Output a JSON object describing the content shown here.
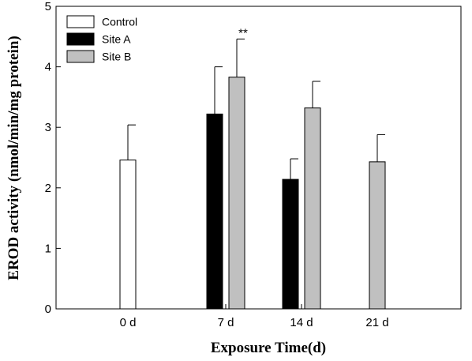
{
  "chart_data": {
    "type": "bar",
    "xlabel": "Exposure Time(d)",
    "ylabel": "EROD activity (nmol/min/mg protein)",
    "ylim": [
      0,
      5
    ],
    "yticks": [
      "0",
      "1",
      "2",
      "3",
      "4",
      "5"
    ],
    "categories": [
      "0 d",
      "7 d",
      "14 d",
      "21 d"
    ],
    "grid": false,
    "legend_position": "top-left",
    "series": [
      {
        "name": "Control",
        "color": "#ffffff",
        "values": [
          2.46,
          null,
          null,
          null
        ],
        "errors": [
          0.58,
          null,
          null,
          null
        ]
      },
      {
        "name": "Site A",
        "color": "#000000",
        "values": [
          null,
          3.22,
          2.14,
          null
        ],
        "errors": [
          null,
          0.78,
          0.34,
          null
        ]
      },
      {
        "name": "Site B",
        "color": "#c0c0c0",
        "values": [
          null,
          3.83,
          3.32,
          2.43
        ],
        "errors": [
          null,
          0.63,
          0.44,
          0.45
        ]
      }
    ],
    "annotations": [
      {
        "text": "**",
        "category": "7 d",
        "series": "Site B"
      }
    ]
  }
}
